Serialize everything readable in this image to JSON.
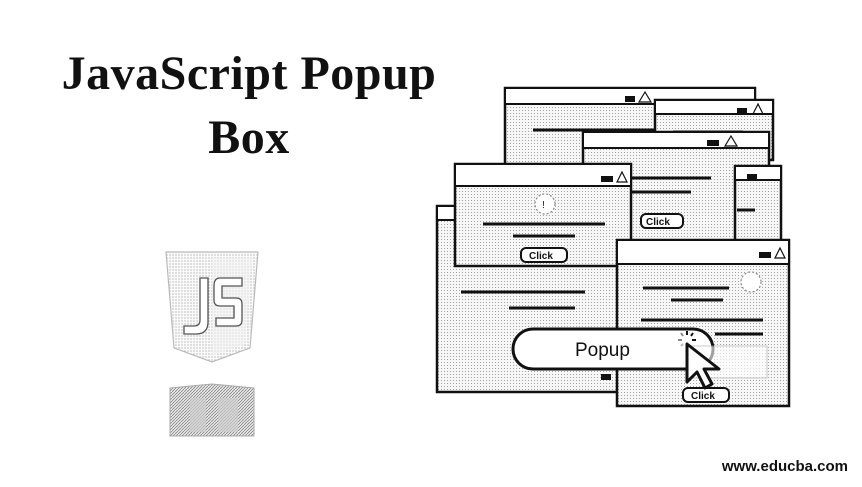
{
  "title": {
    "line1": "JavaScript Popup",
    "line2": "Box"
  },
  "logo": {
    "name": "javascript-shield-logo",
    "text": "JS"
  },
  "popups": {
    "click_label": "Click",
    "popup_button_label": "Popup"
  },
  "footer": {
    "url": "www.educba.com"
  },
  "colors": {
    "ink": "#111111",
    "window_fill": "#f4f4f4",
    "background": "#ffffff"
  }
}
